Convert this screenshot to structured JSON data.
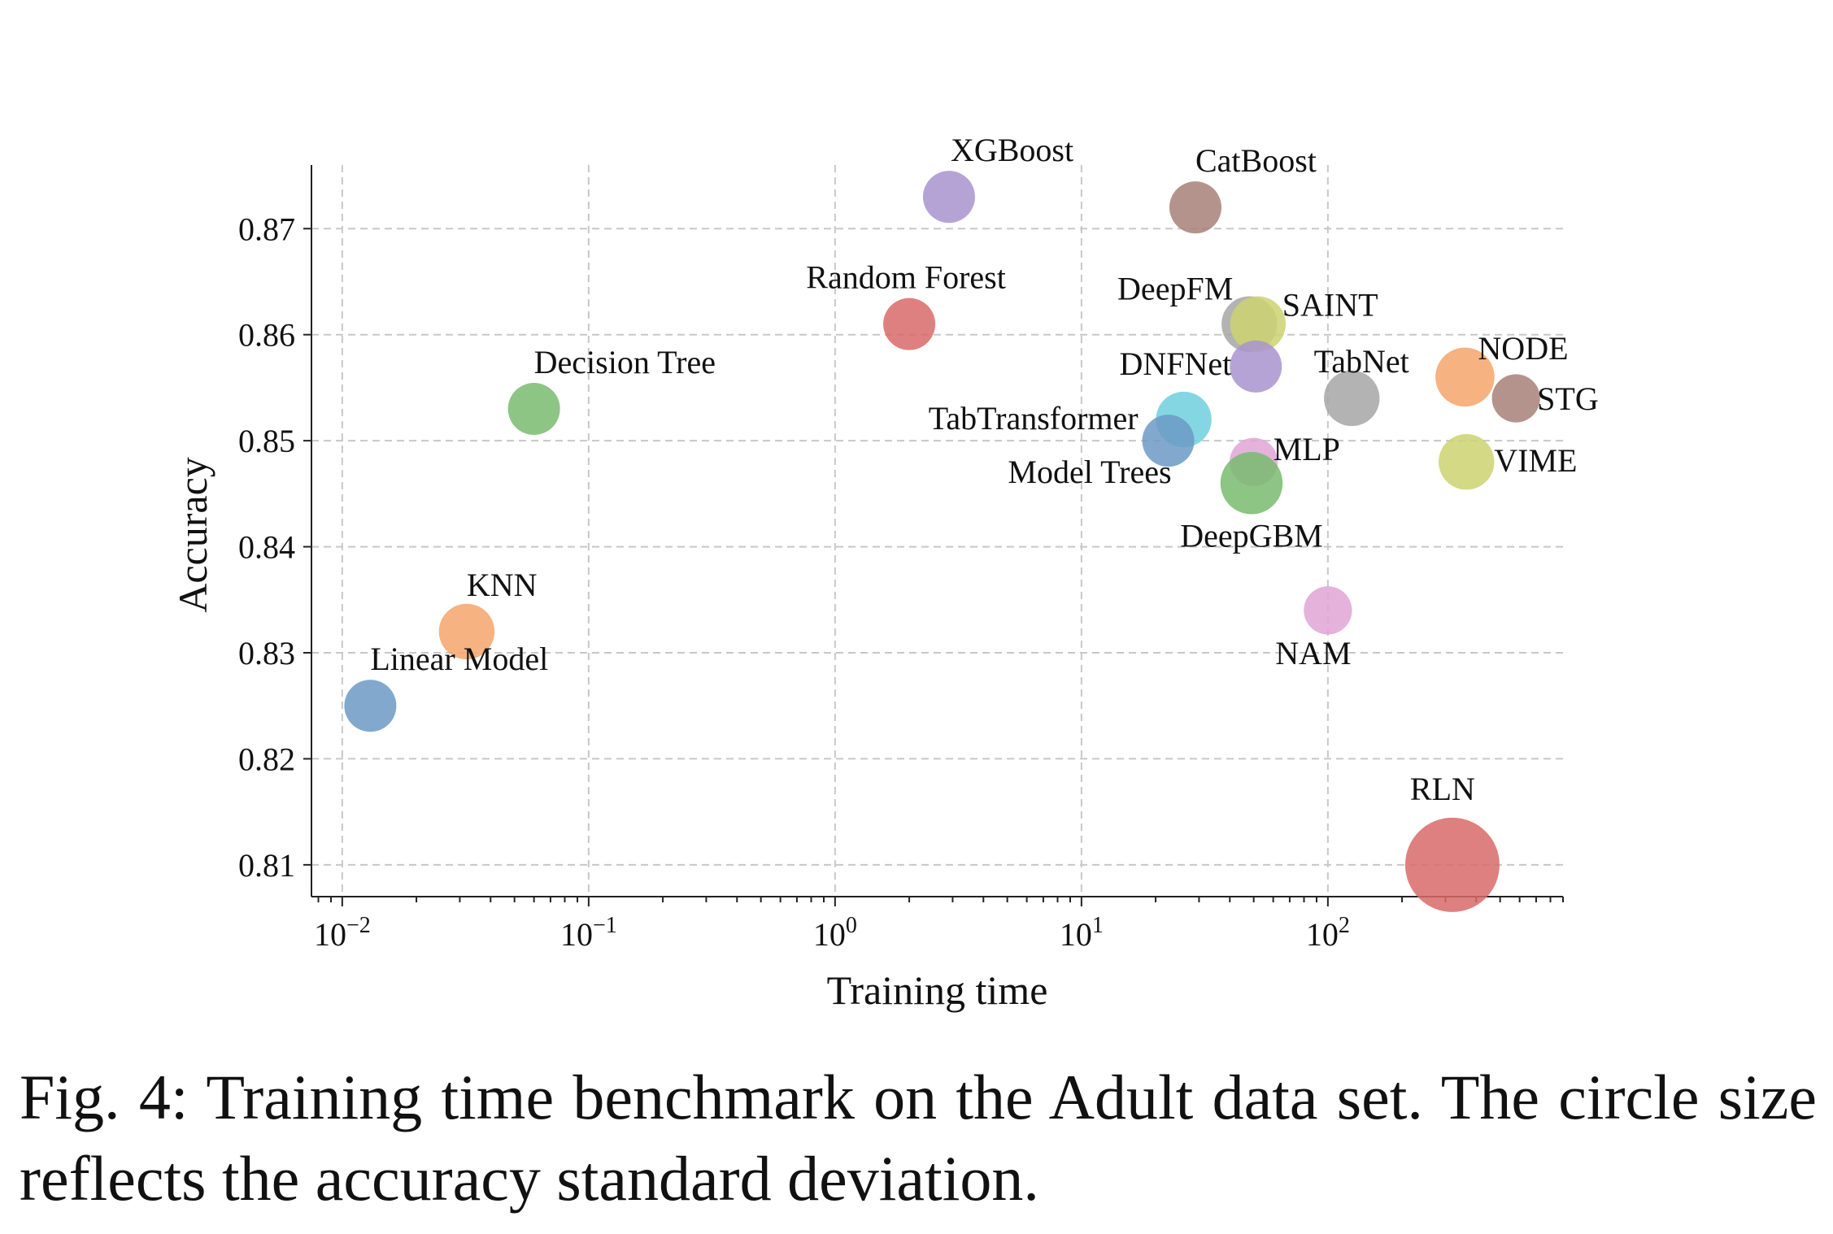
{
  "caption": "Fig. 4: Training time benchmark on the Adult data set. The circle size reflects the accuracy standard deviation.",
  "chart_data": {
    "type": "scatter",
    "title": "",
    "xlabel": "Training time",
    "ylabel": "Accuracy",
    "xscale": "log",
    "xlim": [
      0.0075,
      900
    ],
    "ylim": [
      0.807,
      0.876
    ],
    "xticks": [
      {
        "mantissa": "10",
        "exp": "−2"
      },
      {
        "mantissa": "10",
        "exp": "−1"
      },
      {
        "mantissa": "10",
        "exp": "0"
      },
      {
        "mantissa": "10",
        "exp": "1"
      },
      {
        "mantissa": "10",
        "exp": "2"
      }
    ],
    "yticks": [
      "0.81",
      "0.82",
      "0.83",
      "0.84",
      "0.85",
      "0.86",
      "0.87"
    ],
    "grid": true,
    "size_meaning": "accuracy standard deviation",
    "points": [
      {
        "name": "Linear Model",
        "x": 0.013,
        "y": 0.825,
        "std": 0.0014,
        "color": "#6c9ac4"
      },
      {
        "name": "KNN",
        "x": 0.032,
        "y": 0.832,
        "std": 0.0016,
        "color": "#f4a46a"
      },
      {
        "name": "Decision Tree",
        "x": 0.06,
        "y": 0.853,
        "std": 0.0014,
        "color": "#78bb6f"
      },
      {
        "name": "Random Forest",
        "x": 2.0,
        "y": 0.861,
        "std": 0.0014,
        "color": "#d96a6a"
      },
      {
        "name": "XGBoost",
        "x": 2.9,
        "y": 0.873,
        "std": 0.0014,
        "color": "#a993cf"
      },
      {
        "name": "CatBoost",
        "x": 29,
        "y": 0.872,
        "std": 0.0014,
        "color": "#a88079"
      },
      {
        "name": "DeepFM",
        "x": 48,
        "y": 0.861,
        "std": 0.0016,
        "color": "#a6a6a6"
      },
      {
        "name": "SAINT",
        "x": 52,
        "y": 0.861,
        "std": 0.0016,
        "color": "#cdd270"
      },
      {
        "name": "DNFNet",
        "x": 51,
        "y": 0.857,
        "std": 0.0014,
        "color": "#a993cf"
      },
      {
        "name": "TabNet",
        "x": 125,
        "y": 0.854,
        "std": 0.0016,
        "color": "#a6a6a6"
      },
      {
        "name": "NODE",
        "x": 360,
        "y": 0.856,
        "std": 0.0018,
        "color": "#f4a46a"
      },
      {
        "name": "STG",
        "x": 580,
        "y": 0.854,
        "std": 0.0012,
        "color": "#a88079"
      },
      {
        "name": "TabTransformer",
        "x": 26,
        "y": 0.852,
        "std": 0.0016,
        "color": "#6fd0dd"
      },
      {
        "name": "Model Trees",
        "x": 22.5,
        "y": 0.85,
        "std": 0.0014,
        "color": "#6c9ac4"
      },
      {
        "name": "MLP",
        "x": 50,
        "y": 0.848,
        "std": 0.0012,
        "color": "#e0a4d6"
      },
      {
        "name": "DeepGBM",
        "x": 49,
        "y": 0.846,
        "std": 0.002,
        "color": "#78bb6f"
      },
      {
        "name": "VIME",
        "x": 365,
        "y": 0.848,
        "std": 0.0016,
        "color": "#cdd270"
      },
      {
        "name": "NAM",
        "x": 100,
        "y": 0.834,
        "std": 0.0012,
        "color": "#e0a4d6"
      },
      {
        "name": "RLN",
        "x": 320,
        "y": 0.81,
        "std": 0.0046,
        "color": "#d96a6a"
      }
    ]
  }
}
